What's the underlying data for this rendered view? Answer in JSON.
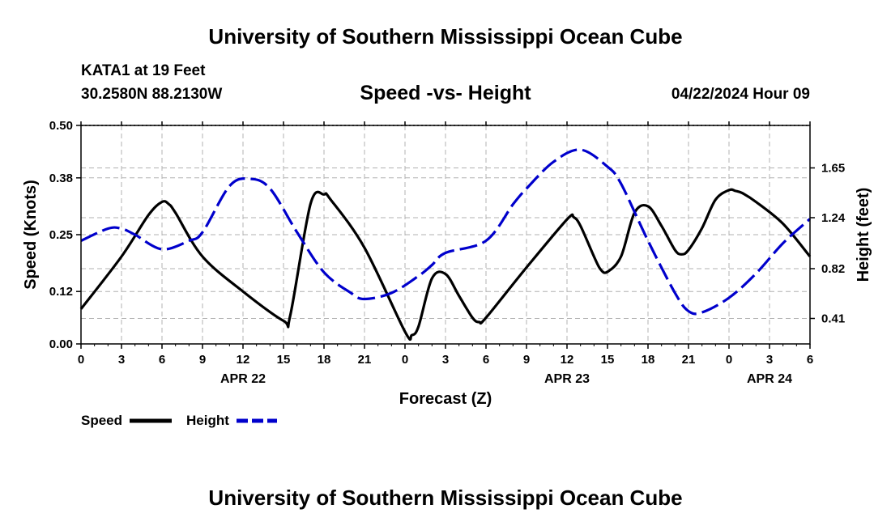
{
  "header": {
    "top_title": "University of Southern Mississippi Ocean Cube",
    "station_name": "KATA1 at 19 Feet",
    "station_coords": "30.2580N  88.2130W",
    "chart_title": "Speed -vs- Height",
    "forecast_time": "04/22/2024 Hour 09"
  },
  "footer": {
    "bottom_title": "University of Southern Mississippi Ocean Cube"
  },
  "colors": {
    "speed": "#000000",
    "height": "#0000cc",
    "grid": "#b0b0b0"
  },
  "chart_data": {
    "type": "line",
    "title": "Speed -vs- Height",
    "xlabel": "Forecast (Z)",
    "ylabel_left": "Speed (Knots)",
    "ylabel_right": "Height (feet)",
    "x_range_hours": [
      0,
      54
    ],
    "x_tick_hours": [
      0,
      3,
      6,
      9,
      12,
      15,
      18,
      21,
      24,
      27,
      30,
      33,
      36,
      39,
      42,
      45,
      48,
      51,
      54
    ],
    "x_tick_labels": [
      "0",
      "3",
      "6",
      "9",
      "12",
      "15",
      "18",
      "21",
      "0",
      "3",
      "6",
      "9",
      "12",
      "15",
      "18",
      "21",
      "0",
      "3",
      "6"
    ],
    "date_labels": [
      {
        "hour": 12,
        "label": "APR 22"
      },
      {
        "hour": 36,
        "label": "APR 23"
      },
      {
        "hour": 51,
        "label": "APR 24"
      }
    ],
    "y_left_range": [
      0,
      0.5
    ],
    "y_left_ticks": [
      0.0,
      0.12,
      0.25,
      0.38,
      0.5
    ],
    "y_left_tick_labels": [
      "0.00",
      "0.12",
      "0.25",
      "0.38",
      "0.50"
    ],
    "y_right_range": [
      0.2,
      2.0
    ],
    "y_right_ticks": [
      0.41,
      0.82,
      1.24,
      1.65
    ],
    "y_right_tick_labels": [
      "0.41",
      "0.82",
      "1.24",
      "1.65"
    ],
    "grid": true,
    "legend": {
      "placement": "bottom-left",
      "entries": [
        "Speed",
        "Height"
      ]
    },
    "series": [
      {
        "name": "Speed",
        "axis": "left",
        "style": "solid",
        "x": [
          0,
          3,
          5,
          6,
          6.5,
          7,
          9,
          12,
          15,
          15.5,
          17,
          18,
          18.5,
          21,
          24,
          24.5,
          25,
          26,
          27,
          28,
          29,
          29.5,
          30,
          33,
          36,
          36.5,
          37,
          38,
          38.5,
          39,
          40,
          41,
          42,
          43,
          44,
          44.5,
          45,
          46,
          47,
          48,
          48.5,
          49,
          50,
          52,
          54
        ],
        "values": [
          0.08,
          0.2,
          0.295,
          0.325,
          0.32,
          0.3,
          0.2,
          0.12,
          0.053,
          0.065,
          0.32,
          0.342,
          0.33,
          0.22,
          0.028,
          0.02,
          0.04,
          0.15,
          0.16,
          0.11,
          0.06,
          0.05,
          0.06,
          0.175,
          0.285,
          0.29,
          0.27,
          0.2,
          0.17,
          0.165,
          0.2,
          0.3,
          0.315,
          0.27,
          0.215,
          0.205,
          0.215,
          0.265,
          0.33,
          0.352,
          0.35,
          0.345,
          0.325,
          0.275,
          0.2
        ]
      },
      {
        "name": "Height",
        "axis": "right",
        "style": "dashed",
        "x": [
          0,
          2,
          3,
          4,
          6,
          8,
          9,
          11,
          12.5,
          14,
          16,
          18,
          20,
          21,
          23,
          25,
          26,
          27,
          30,
          32,
          33,
          35,
          37,
          39,
          40,
          42,
          44,
          45,
          46,
          48,
          50,
          52,
          54
        ],
        "values": [
          1.05,
          1.15,
          1.15,
          1.1,
          0.98,
          1.05,
          1.12,
          1.5,
          1.56,
          1.48,
          1.12,
          0.79,
          0.62,
          0.57,
          0.62,
          0.76,
          0.85,
          0.95,
          1.05,
          1.35,
          1.48,
          1.7,
          1.8,
          1.66,
          1.52,
          1.05,
          0.62,
          0.47,
          0.46,
          0.58,
          0.78,
          1.03,
          1.23
        ]
      }
    ]
  }
}
